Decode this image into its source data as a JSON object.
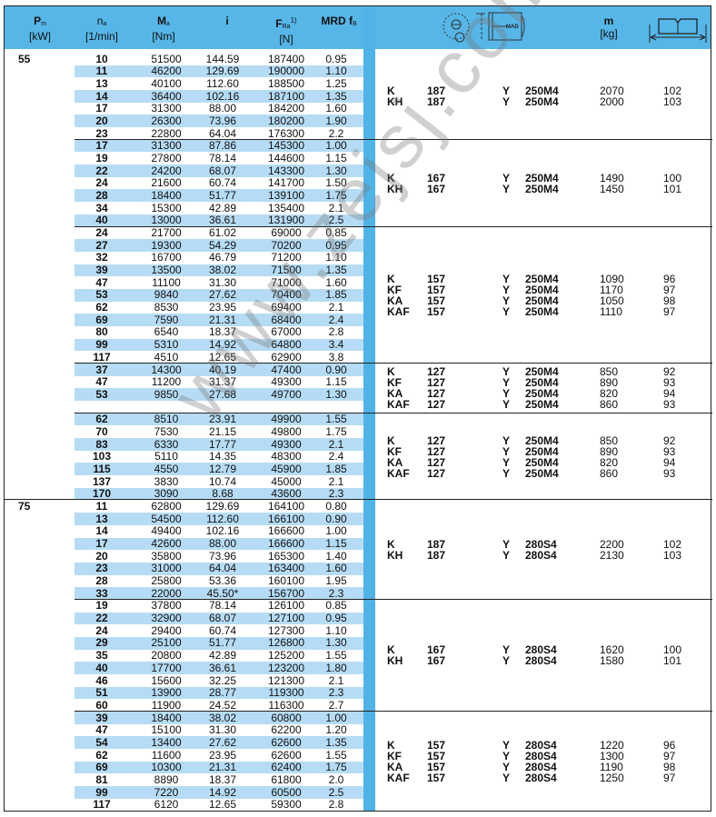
{
  "header": {
    "pm": {
      "main": "P",
      "sub": "m",
      "unit": "[kW]"
    },
    "na": {
      "main": "n",
      "sub": "a",
      "unit": "[1/min]"
    },
    "ma": {
      "main": "M",
      "sub": "a",
      "unit": "[Nm]"
    },
    "i": {
      "main": "i"
    },
    "fra": {
      "main": "F",
      "sub": "Ra",
      "sup": "1)",
      "unit": "[N]"
    },
    "mrd": {
      "main": "MRD f",
      "sub": "B"
    },
    "motor_label": "MAD",
    "m": {
      "main": "m",
      "unit": "[kg]"
    },
    "dimension_icon": "book-dimension-icon",
    "gearbox_icon": "gearmotor-drawing-icon"
  },
  "colors": {
    "header": "#56b6e8",
    "row_stripe": "#b6dcf5",
    "divider_band": "#4fb3e8"
  },
  "watermark": "www.zejsj.com",
  "powers": [
    {
      "pm": "55",
      "blocks": [
        {
          "rows": [
            [
              "10",
              "51500",
              "144.59",
              "187400",
              "0.95"
            ],
            [
              "11",
              "46200",
              "129.69",
              "190000",
              "1.10"
            ],
            [
              "13",
              "40100",
              "112.60",
              "188500",
              "1.25"
            ],
            [
              "14",
              "36400",
              "102.16",
              "187100",
              "1.35"
            ],
            [
              "17",
              "31300",
              "88.00",
              "184200",
              "1.60"
            ],
            [
              "20",
              "26300",
              "73.96",
              "180200",
              "1.90"
            ],
            [
              "23",
              "22800",
              "64.04",
              "176300",
              "2.2"
            ]
          ],
          "units": [
            [
              "K",
              "187",
              "Y",
              "250M4",
              "2070",
              "102"
            ],
            [
              "KH",
              "187",
              "Y",
              "250M4",
              "2000",
              "103"
            ]
          ]
        },
        {
          "rows": [
            [
              "17",
              "31300",
              "87.86",
              "145300",
              "1.00"
            ],
            [
              "19",
              "27800",
              "78.14",
              "144600",
              "1.15"
            ],
            [
              "22",
              "24200",
              "68.07",
              "143300",
              "1.30"
            ],
            [
              "24",
              "21600",
              "60.74",
              "141700",
              "1.50"
            ],
            [
              "28",
              "18400",
              "51.77",
              "139100",
              "1.75"
            ],
            [
              "34",
              "15300",
              "42.89",
              "135400",
              "2.1"
            ],
            [
              "40",
              "13000",
              "36.61",
              "131900",
              "2.5"
            ]
          ],
          "units": [
            [
              "K",
              "167",
              "Y",
              "250M4",
              "1490",
              "100"
            ],
            [
              "KH",
              "167",
              "Y",
              "250M4",
              "1450",
              "101"
            ]
          ]
        },
        {
          "rows": [
            [
              "24",
              "21700",
              "61.02",
              "69000",
              "0.85"
            ],
            [
              "27",
              "19300",
              "54.29",
              "70200",
              "0.95"
            ],
            [
              "32",
              "16700",
              "46.79",
              "71200",
              "1.10"
            ],
            [
              "39",
              "13500",
              "38.02",
              "71500",
              "1.35"
            ],
            [
              "47",
              "11100",
              "31.30",
              "71000",
              "1.60"
            ],
            [
              "53",
              "9840",
              "27.62",
              "70400",
              "1.85"
            ],
            [
              "62",
              "8530",
              "23.95",
              "69400",
              "2.1"
            ],
            [
              "69",
              "7590",
              "21.31",
              "68400",
              "2.4"
            ],
            [
              "80",
              "6540",
              "18.37",
              "67000",
              "2.8"
            ],
            [
              "99",
              "5310",
              "14.92",
              "64800",
              "3.4"
            ],
            [
              "117",
              "4510",
              "12.65",
              "62900",
              "3.8"
            ]
          ],
          "units": [
            [
              "K",
              "157",
              "Y",
              "250M4",
              "1090",
              "96"
            ],
            [
              "KF",
              "157",
              "Y",
              "250M4",
              "1170",
              "97"
            ],
            [
              "KA",
              "157",
              "Y",
              "250M4",
              "1050",
              "98"
            ],
            [
              "KAF",
              "157",
              "Y",
              "250M4",
              "1110",
              "97"
            ]
          ]
        },
        {
          "rows": [
            [
              "37",
              "14300",
              "40.19",
              "47400",
              "0.90"
            ],
            [
              "47",
              "11200",
              "31.37",
              "49300",
              "1.15"
            ],
            [
              "53",
              "9850",
              "27.68",
              "49700",
              "1.30"
            ],
            []
          ],
          "units": [
            [
              "K",
              "127",
              "Y",
              "250M4",
              "850",
              "92"
            ],
            [
              "KF",
              "127",
              "Y",
              "250M4",
              "890",
              "93"
            ],
            [
              "KA",
              "127",
              "Y",
              "250M4",
              "820",
              "94"
            ],
            [
              "KAF",
              "127",
              "Y",
              "250M4",
              "860",
              "93"
            ]
          ]
        },
        {
          "rows": [
            [
              "62",
              "8510",
              "23.91",
              "49900",
              "1.55"
            ],
            [
              "70",
              "7530",
              "21.15",
              "49800",
              "1.75"
            ],
            [
              "83",
              "6330",
              "17.77",
              "49300",
              "2.1"
            ],
            [
              "103",
              "5110",
              "14.35",
              "48300",
              "2.4"
            ],
            [
              "115",
              "4550",
              "12.79",
              "45900",
              "1.85"
            ],
            [
              "137",
              "3830",
              "10.74",
              "45000",
              "2.1"
            ],
            [
              "170",
              "3090",
              "8.68",
              "43600",
              "2.3"
            ]
          ],
          "units": [
            [
              "K",
              "127",
              "Y",
              "250M4",
              "850",
              "92"
            ],
            [
              "KF",
              "127",
              "Y",
              "250M4",
              "890",
              "93"
            ],
            [
              "KA",
              "127",
              "Y",
              "250M4",
              "820",
              "94"
            ],
            [
              "KAF",
              "127",
              "Y",
              "250M4",
              "860",
              "93"
            ]
          ]
        }
      ]
    },
    {
      "pm": "75",
      "blocks": [
        {
          "rows": [
            [
              "11",
              "62800",
              "129.69",
              "164100",
              "0.80"
            ],
            [
              "13",
              "54500",
              "112.60",
              "166100",
              "0.90"
            ],
            [
              "14",
              "49400",
              "102.16",
              "166600",
              "1.00"
            ],
            [
              "17",
              "42600",
              "88.00",
              "166600",
              "1.15"
            ],
            [
              "20",
              "35800",
              "73.96",
              "165300",
              "1.40"
            ],
            [
              "23",
              "31000",
              "64.04",
              "163400",
              "1.60"
            ],
            [
              "28",
              "25800",
              "53.36",
              "160100",
              "1.95"
            ],
            [
              "33",
              "22000",
              "45.50*",
              "156700",
              "2.3"
            ]
          ],
          "units": [
            [
              "K",
              "187",
              "Y",
              "280S4",
              "2200",
              "102"
            ],
            [
              "KH",
              "187",
              "Y",
              "280S4",
              "2130",
              "103"
            ]
          ]
        },
        {
          "rows": [
            [
              "19",
              "37800",
              "78.14",
              "126100",
              "0.85"
            ],
            [
              "22",
              "32900",
              "68.07",
              "127100",
              "0.95"
            ],
            [
              "24",
              "29400",
              "60.74",
              "127300",
              "1.10"
            ],
            [
              "29",
              "25100",
              "51.77",
              "126800",
              "1.30"
            ],
            [
              "35",
              "20800",
              "42.89",
              "125200",
              "1.55"
            ],
            [
              "40",
              "17700",
              "36.61",
              "123200",
              "1.80"
            ],
            [
              "46",
              "15600",
              "32.25",
              "121300",
              "2.1"
            ],
            [
              "51",
              "13900",
              "28.77",
              "119300",
              "2.3"
            ],
            [
              "60",
              "11900",
              "24.52",
              "116300",
              "2.7"
            ]
          ],
          "units": [
            [
              "K",
              "167",
              "Y",
              "280S4",
              "1620",
              "100"
            ],
            [
              "KH",
              "167",
              "Y",
              "280S4",
              "1580",
              "101"
            ]
          ]
        },
        {
          "rows": [
            [
              "39",
              "18400",
              "38.02",
              "60800",
              "1.00"
            ],
            [
              "47",
              "15100",
              "31.30",
              "62200",
              "1.20"
            ],
            [
              "54",
              "13400",
              "27.62",
              "62600",
              "1.35"
            ],
            [
              "62",
              "11600",
              "23.95",
              "62600",
              "1.55"
            ],
            [
              "69",
              "10300",
              "21.31",
              "62400",
              "1.75"
            ],
            [
              "81",
              "8890",
              "18.37",
              "61800",
              "2.0"
            ],
            [
              "99",
              "7220",
              "14.92",
              "60500",
              "2.5"
            ],
            [
              "117",
              "6120",
              "12.65",
              "59300",
              "2.8"
            ]
          ],
          "units": [
            [
              "K",
              "157",
              "Y",
              "280S4",
              "1220",
              "96"
            ],
            [
              "KF",
              "157",
              "Y",
              "280S4",
              "1300",
              "97"
            ],
            [
              "KA",
              "157",
              "Y",
              "280S4",
              "1190",
              "98"
            ],
            [
              "KAF",
              "157",
              "Y",
              "280S4",
              "1250",
              "97"
            ]
          ]
        }
      ]
    }
  ]
}
